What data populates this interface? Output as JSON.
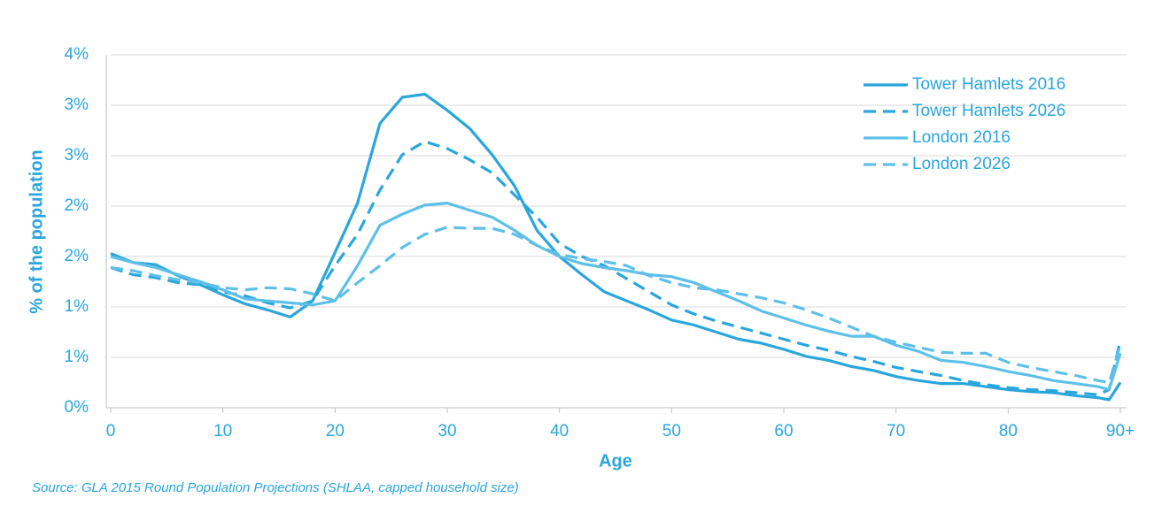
{
  "chart_data": {
    "type": "line",
    "x_label": "Age",
    "y_label": "% of the population",
    "source": "Source: GLA 2015 Round Population Projections (SHLAA, capped household size)",
    "x": [
      0,
      2,
      4,
      6,
      8,
      10,
      12,
      14,
      16,
      18,
      20,
      22,
      24,
      26,
      28,
      30,
      32,
      34,
      36,
      38,
      40,
      42,
      44,
      46,
      48,
      50,
      52,
      54,
      56,
      58,
      60,
      62,
      64,
      66,
      68,
      70,
      72,
      74,
      76,
      78,
      80,
      82,
      84,
      86,
      88,
      89,
      90
    ],
    "xlim": [
      0,
      90
    ],
    "xticks": [
      0,
      10,
      20,
      30,
      40,
      50,
      60,
      70,
      80,
      {
        "value": 90,
        "label": "90+"
      }
    ],
    "ylim": [
      0,
      3.5
    ],
    "yticks": [
      {
        "value": 0,
        "label": "0%"
      },
      {
        "value": 0.5,
        "label": "1%"
      },
      {
        "value": 1,
        "label": "1%"
      },
      {
        "value": 1.5,
        "label": "2%"
      },
      {
        "value": 2,
        "label": "2%"
      },
      {
        "value": 2.5,
        "label": "3%"
      },
      {
        "value": 3,
        "label": "3%"
      },
      {
        "value": 3.5,
        "label": "4%"
      }
    ],
    "grid": true,
    "legend": "upper right",
    "series": [
      {
        "name": "Tower Hamlets 2016",
        "color": "#2aa6dc",
        "dashed": false,
        "values": [
          1.53,
          1.44,
          1.42,
          1.31,
          1.22,
          1.12,
          1.03,
          0.97,
          0.9,
          1.06,
          1.54,
          2.03,
          2.82,
          3.08,
          3.11,
          2.95,
          2.77,
          2.51,
          2.2,
          1.76,
          1.5,
          1.32,
          1.15,
          1.06,
          0.97,
          0.87,
          0.82,
          0.75,
          0.68,
          0.64,
          0.58,
          0.51,
          0.47,
          0.41,
          0.37,
          0.31,
          0.27,
          0.24,
          0.24,
          0.21,
          0.18,
          0.16,
          0.15,
          0.12,
          0.1,
          0.08,
          0.25
        ]
      },
      {
        "name": "Tower Hamlets 2026",
        "color": "#2aa6dc",
        "dashed": true,
        "values": [
          1.39,
          1.32,
          1.29,
          1.24,
          1.22,
          1.15,
          1.11,
          1.04,
          0.99,
          1.06,
          1.41,
          1.72,
          2.16,
          2.51,
          2.64,
          2.57,
          2.46,
          2.33,
          2.11,
          1.89,
          1.63,
          1.5,
          1.41,
          1.28,
          1.15,
          1.02,
          0.93,
          0.86,
          0.8,
          0.74,
          0.68,
          0.62,
          0.57,
          0.51,
          0.46,
          0.4,
          0.36,
          0.32,
          0.27,
          0.23,
          0.2,
          0.18,
          0.17,
          0.15,
          0.13,
          0.18,
          0.67
        ]
      },
      {
        "name": "London 2016",
        "color": "#5ec0e8",
        "dashed": false,
        "values": [
          1.5,
          1.44,
          1.39,
          1.32,
          1.25,
          1.17,
          1.08,
          1.06,
          1.04,
          1.02,
          1.06,
          1.41,
          1.81,
          1.92,
          2.01,
          2.03,
          1.96,
          1.89,
          1.76,
          1.61,
          1.5,
          1.43,
          1.39,
          1.36,
          1.32,
          1.3,
          1.24,
          1.15,
          1.06,
          0.96,
          0.89,
          0.82,
          0.76,
          0.71,
          0.71,
          0.62,
          0.56,
          0.47,
          0.45,
          0.41,
          0.36,
          0.32,
          0.27,
          0.24,
          0.21,
          0.18,
          0.54
        ]
      },
      {
        "name": "London 2026",
        "color": "#5ec0e8",
        "dashed": true,
        "values": [
          1.39,
          1.36,
          1.31,
          1.27,
          1.24,
          1.19,
          1.17,
          1.19,
          1.18,
          1.13,
          1.06,
          1.24,
          1.41,
          1.59,
          1.72,
          1.79,
          1.78,
          1.78,
          1.72,
          1.61,
          1.52,
          1.48,
          1.45,
          1.41,
          1.31,
          1.24,
          1.19,
          1.17,
          1.13,
          1.09,
          1.04,
          0.97,
          0.89,
          0.8,
          0.71,
          0.65,
          0.6,
          0.55,
          0.54,
          0.54,
          0.45,
          0.4,
          0.36,
          0.32,
          0.27,
          0.25,
          0.62
        ]
      }
    ]
  }
}
